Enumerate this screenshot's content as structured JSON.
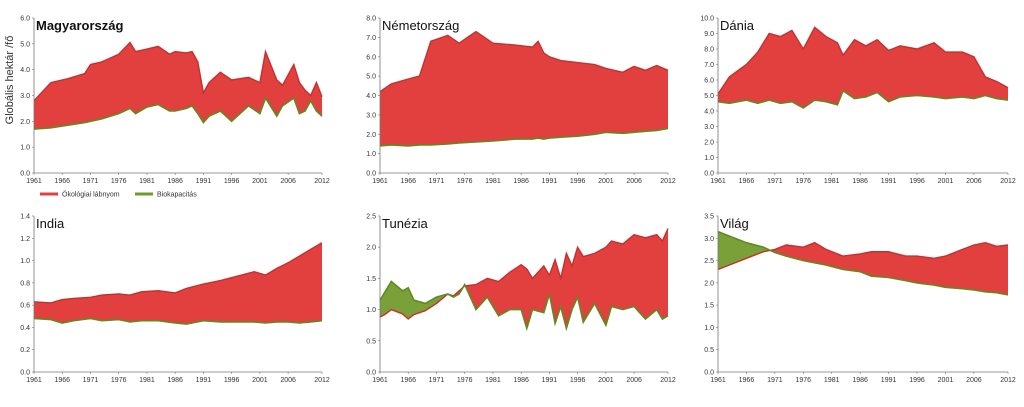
{
  "figure": {
    "ylabel": "Globális hektár /fő",
    "legend": {
      "placement": "below-first-chart",
      "items": [
        {
          "label": "Ökológiai lábnyom",
          "color": "#e2403f"
        },
        {
          "label": "Biokapacitás",
          "color": "#6f9a2c"
        }
      ]
    },
    "colors": {
      "deficit": "#e2403f",
      "reserve": "#7aa03a",
      "biocapacity_line": "#5f8a1f",
      "footprint_line": "#c4302e"
    }
  },
  "chart_data": [
    {
      "type": "area",
      "title": "Magyarország",
      "title_bold": true,
      "x_ticks": [
        1961,
        1966,
        1971,
        1976,
        1981,
        1986,
        1991,
        1996,
        2001,
        2006,
        2012
      ],
      "ylim": [
        0,
        6
      ],
      "y_ticks": [
        "0.0",
        "1.0",
        "2.0",
        "3.0",
        "4.0",
        "5.0",
        "6.0"
      ],
      "x": [
        1961,
        1964,
        1967,
        1970,
        1971,
        1973,
        1976,
        1978,
        1979,
        1981,
        1983,
        1985,
        1986,
        1988,
        1989,
        1990,
        1991,
        1992,
        1994,
        1996,
        1999,
        2001,
        2002,
        2004,
        2005,
        2007,
        2008,
        2009,
        2010,
        2011,
        2012
      ],
      "series": [
        {
          "name": "Ökológiai lábnyom",
          "values": [
            2.8,
            3.5,
            3.65,
            3.85,
            4.2,
            4.3,
            4.6,
            5.05,
            4.7,
            4.8,
            4.9,
            4.6,
            4.7,
            4.65,
            4.7,
            4.3,
            3.1,
            3.5,
            3.9,
            3.6,
            3.7,
            3.5,
            4.7,
            3.6,
            3.4,
            4.2,
            3.5,
            3.2,
            3.0,
            3.5,
            2.95
          ]
        },
        {
          "name": "Biokapacitás",
          "values": [
            1.7,
            1.75,
            1.85,
            1.95,
            2.0,
            2.1,
            2.3,
            2.5,
            2.3,
            2.55,
            2.65,
            2.4,
            2.4,
            2.5,
            2.6,
            2.3,
            1.95,
            2.2,
            2.4,
            2.0,
            2.6,
            2.3,
            2.9,
            2.2,
            2.6,
            2.9,
            2.3,
            2.4,
            2.8,
            2.4,
            2.2
          ]
        }
      ]
    },
    {
      "type": "area",
      "title": "Németország",
      "x_ticks": [
        1961,
        1966,
        1971,
        1976,
        1981,
        1986,
        1991,
        1996,
        2001,
        2006,
        2012
      ],
      "ylim": [
        0,
        8
      ],
      "y_ticks": [
        "0.0",
        "1.0",
        "2.0",
        "3.0",
        "4.0",
        "5.0",
        "6.0",
        "7.0",
        "8.0"
      ],
      "x": [
        1961,
        1963,
        1966,
        1968,
        1970,
        1973,
        1975,
        1978,
        1981,
        1985,
        1988,
        1989,
        1990,
        1991,
        1993,
        1996,
        1999,
        2001,
        2004,
        2006,
        2008,
        2010,
        2012
      ],
      "series": [
        {
          "name": "Ökológiai lábnyom",
          "values": [
            4.2,
            4.6,
            4.85,
            5.0,
            6.8,
            7.1,
            6.7,
            7.3,
            6.7,
            6.6,
            6.5,
            6.8,
            6.2,
            6.0,
            5.8,
            5.7,
            5.6,
            5.4,
            5.2,
            5.5,
            5.3,
            5.55,
            5.3
          ]
        },
        {
          "name": "Biokapacitás",
          "values": [
            1.4,
            1.45,
            1.4,
            1.45,
            1.45,
            1.5,
            1.55,
            1.6,
            1.65,
            1.75,
            1.75,
            1.8,
            1.75,
            1.8,
            1.85,
            1.9,
            2.0,
            2.1,
            2.05,
            2.1,
            2.15,
            2.2,
            2.3
          ]
        }
      ]
    },
    {
      "type": "area",
      "title": "Dánia",
      "x_ticks": [
        1961,
        1966,
        1971,
        1976,
        1981,
        1986,
        1991,
        1996,
        2001,
        2006,
        2012
      ],
      "ylim": [
        0,
        10
      ],
      "y_ticks": [
        "0.0",
        "1.0",
        "2.0",
        "3.0",
        "4.0",
        "5.0",
        "6.0",
        "7.0",
        "8.0",
        "9.0",
        "10.0"
      ],
      "x": [
        1961,
        1963,
        1966,
        1968,
        1970,
        1972,
        1974,
        1976,
        1978,
        1980,
        1982,
        1983,
        1985,
        1987,
        1989,
        1991,
        1993,
        1996,
        1999,
        2001,
        2004,
        2006,
        2008,
        2010,
        2012
      ],
      "series": [
        {
          "name": "Ökológiai lábnyom",
          "values": [
            5.1,
            6.2,
            7.0,
            7.8,
            9.0,
            8.8,
            9.2,
            8.0,
            9.4,
            8.8,
            8.4,
            7.6,
            8.6,
            8.2,
            8.6,
            7.9,
            8.2,
            8.0,
            8.4,
            7.8,
            7.8,
            7.5,
            6.2,
            5.9,
            5.5
          ]
        },
        {
          "name": "Biokapacitás",
          "values": [
            4.6,
            4.5,
            4.7,
            4.5,
            4.7,
            4.5,
            4.6,
            4.2,
            4.7,
            4.6,
            4.4,
            5.3,
            4.8,
            4.9,
            5.2,
            4.6,
            4.9,
            5.0,
            4.9,
            4.8,
            4.9,
            4.8,
            5.0,
            4.8,
            4.7
          ]
        }
      ]
    },
    {
      "type": "area",
      "title": "India",
      "x_ticks": [
        1961,
        1966,
        1971,
        1976,
        1981,
        1986,
        1991,
        1996,
        2001,
        2006,
        2012
      ],
      "ylim": [
        0,
        1.4
      ],
      "y_ticks": [
        "0.0",
        "0.2",
        "0.4",
        "0.6",
        "0.8",
        "1.0",
        "1.2",
        "1.4"
      ],
      "x": [
        1961,
        1964,
        1966,
        1968,
        1971,
        1973,
        1976,
        1978,
        1980,
        1983,
        1986,
        1988,
        1991,
        1994,
        1997,
        2000,
        2002,
        2004,
        2006,
        2008,
        2010,
        2012
      ],
      "series": [
        {
          "name": "Ökológiai lábnyom",
          "values": [
            0.63,
            0.62,
            0.65,
            0.66,
            0.67,
            0.69,
            0.7,
            0.69,
            0.72,
            0.73,
            0.71,
            0.75,
            0.79,
            0.82,
            0.86,
            0.9,
            0.87,
            0.93,
            0.98,
            1.04,
            1.1,
            1.16
          ]
        },
        {
          "name": "Biokapacitás",
          "values": [
            0.48,
            0.47,
            0.44,
            0.46,
            0.48,
            0.46,
            0.47,
            0.45,
            0.46,
            0.46,
            0.44,
            0.43,
            0.46,
            0.45,
            0.45,
            0.45,
            0.44,
            0.45,
            0.45,
            0.44,
            0.45,
            0.46
          ]
        }
      ]
    },
    {
      "type": "area",
      "title": "Tunézia",
      "x_ticks": [
        1961,
        1966,
        1971,
        1976,
        1981,
        1986,
        1991,
        1996,
        2001,
        2006,
        2012
      ],
      "ylim": [
        0,
        2.5
      ],
      "y_ticks": [
        "0.0",
        "0.5",
        "1.0",
        "1.5",
        "2.0",
        "2.5"
      ],
      "x": [
        1961,
        1962,
        1963,
        1965,
        1966,
        1967,
        1969,
        1971,
        1973,
        1974,
        1975,
        1976,
        1978,
        1980,
        1982,
        1984,
        1986,
        1987,
        1988,
        1990,
        1991,
        1992,
        1993,
        1994,
        1995,
        1996,
        1997,
        1999,
        2001,
        2002,
        2004,
        2006,
        2008,
        2010,
        2011,
        2012
      ],
      "series": [
        {
          "name": "Ökológiai lábnyom",
          "values": [
            0.88,
            0.93,
            1.0,
            0.93,
            0.85,
            0.92,
            0.98,
            1.1,
            1.25,
            1.22,
            1.3,
            1.38,
            1.4,
            1.5,
            1.45,
            1.6,
            1.72,
            1.65,
            1.5,
            1.7,
            1.55,
            1.8,
            1.5,
            1.9,
            1.7,
            2.0,
            1.85,
            1.9,
            2.0,
            2.1,
            2.05,
            2.2,
            2.15,
            2.2,
            2.1,
            2.3
          ]
        },
        {
          "name": "Biokapacitás",
          "values": [
            1.15,
            1.3,
            1.45,
            1.3,
            1.35,
            1.15,
            1.1,
            1.2,
            1.25,
            1.2,
            1.25,
            1.4,
            1.0,
            1.2,
            0.9,
            1.0,
            1.0,
            0.7,
            1.0,
            0.95,
            1.25,
            0.78,
            1.05,
            0.7,
            1.0,
            1.2,
            0.8,
            1.1,
            0.75,
            1.05,
            1.0,
            1.05,
            0.85,
            1.0,
            0.85,
            0.9
          ]
        }
      ]
    },
    {
      "type": "area",
      "title": "Világ",
      "x_ticks": [
        1961,
        1966,
        1971,
        1976,
        1981,
        1986,
        1991,
        1996,
        2001,
        2006,
        2012
      ],
      "ylim": [
        0,
        3.5
      ],
      "y_ticks": [
        "0.0",
        "0.5",
        "1.0",
        "1.5",
        "2.0",
        "2.5",
        "3.0",
        "3.5"
      ],
      "x": [
        1961,
        1963,
        1966,
        1969,
        1971,
        1973,
        1976,
        1978,
        1980,
        1983,
        1986,
        1988,
        1991,
        1994,
        1996,
        1999,
        2001,
        2004,
        2006,
        2008,
        2010,
        2012
      ],
      "series": [
        {
          "name": "Ökológiai lábnyom",
          "values": [
            2.3,
            2.4,
            2.55,
            2.7,
            2.75,
            2.85,
            2.8,
            2.9,
            2.75,
            2.6,
            2.65,
            2.7,
            2.7,
            2.6,
            2.6,
            2.55,
            2.6,
            2.75,
            2.85,
            2.9,
            2.82,
            2.85
          ]
        },
        {
          "name": "Biokapacitás",
          "values": [
            3.15,
            3.05,
            2.9,
            2.8,
            2.68,
            2.6,
            2.5,
            2.45,
            2.4,
            2.3,
            2.25,
            2.15,
            2.12,
            2.05,
            2.0,
            1.95,
            1.9,
            1.87,
            1.84,
            1.8,
            1.78,
            1.73
          ]
        }
      ]
    }
  ]
}
